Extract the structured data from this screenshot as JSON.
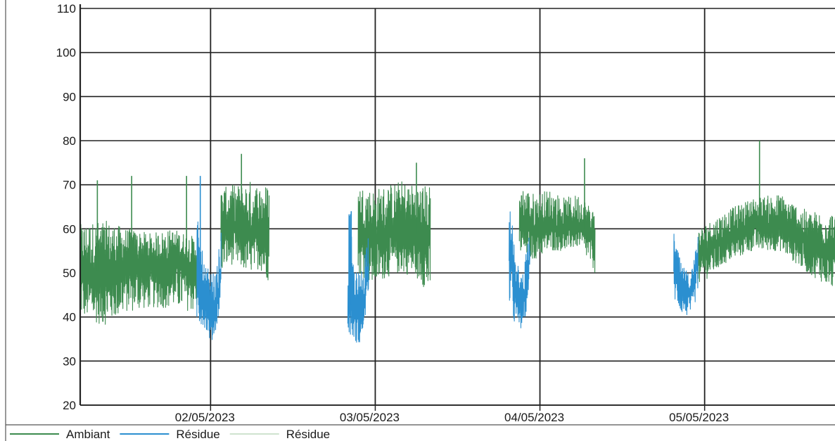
{
  "chart_data": {
    "type": "line",
    "title": "",
    "xlabel": "",
    "ylabel": "",
    "ylim": [
      20,
      110
    ],
    "yticks": [
      20,
      30,
      40,
      50,
      60,
      70,
      80,
      90,
      100,
      110
    ],
    "xlim": [
      "2023-05-01 05:00",
      "2023-05-05 19:00"
    ],
    "xticks": [
      {
        "label": "02/05/2023",
        "time": "2023-05-02 00:00"
      },
      {
        "label": "03/05/2023",
        "time": "2023-05-03 00:00"
      },
      {
        "label": "04/05/2023",
        "time": "2023-05-04 00:00"
      },
      {
        "label": "05/05/2023",
        "time": "2023-05-05 00:00"
      }
    ],
    "grid": true,
    "legend_position": "bottom",
    "series": [
      {
        "name": "Ambiant",
        "color": "#3d8b4f",
        "segments": [
          {
            "start": "2023-05-01 05:00",
            "end": "2023-05-01 22:00",
            "points": [
              [
                0,
                52,
                40,
                61
              ],
              [
                0.2,
                50,
                38,
                62
              ],
              [
                0.4,
                53,
                41,
                60
              ],
              [
                0.6,
                52,
                42,
                59
              ],
              [
                0.8,
                53,
                42,
                60
              ],
              [
                1,
                52,
                41,
                58
              ]
            ],
            "spikes": [
              [
                "2023-05-01 07:30",
                71
              ],
              [
                "2023-05-01 12:30",
                72
              ],
              [
                "2023-05-01 20:30",
                72
              ]
            ]
          },
          {
            "start": "2023-05-02 01:30",
            "end": "2023-05-02 08:30",
            "points": [
              [
                0,
                60,
                50,
                69
              ],
              [
                0.2,
                61,
                52,
                70
              ],
              [
                0.4,
                60,
                51,
                70
              ],
              [
                0.6,
                59,
                50,
                71
              ],
              [
                0.8,
                60,
                51,
                70
              ],
              [
                1,
                59,
                48,
                70
              ]
            ],
            "spikes": [
              [
                "2023-05-02 04:30",
                77
              ]
            ]
          },
          {
            "start": "2023-05-02 21:30",
            "end": "2023-05-03 08:00",
            "points": [
              [
                0,
                61,
                50,
                70
              ],
              [
                0.2,
                58,
                47,
                69
              ],
              [
                0.4,
                59,
                49,
                70
              ],
              [
                0.6,
                60,
                50,
                71
              ],
              [
                0.8,
                59,
                49,
                70
              ],
              [
                1,
                58,
                45,
                70
              ]
            ],
            "spikes": [
              [
                "2023-05-03 06:00",
                75
              ]
            ]
          },
          {
            "start": "2023-05-03 21:00",
            "end": "2023-05-04 08:00",
            "points": [
              [
                0,
                62,
                54,
                70
              ],
              [
                0.2,
                60,
                53,
                68
              ],
              [
                0.4,
                61,
                55,
                69
              ],
              [
                0.6,
                60,
                55,
                67
              ],
              [
                0.8,
                61,
                56,
                68
              ],
              [
                1,
                58,
                50,
                64
              ]
            ],
            "spikes": [
              [
                "2023-05-04 06:30",
                76
              ]
            ]
          },
          {
            "start": "2023-05-04 23:00",
            "end": "2023-05-05 19:00",
            "points": [
              [
                0,
                54,
                47,
                60
              ],
              [
                0.2,
                58,
                52,
                64
              ],
              [
                0.4,
                61,
                55,
                67
              ],
              [
                0.6,
                61,
                55,
                68
              ],
              [
                0.8,
                57,
                50,
                64
              ],
              [
                1,
                55,
                46,
                64
              ]
            ],
            "spikes": [
              [
                "2023-05-05 08:00",
                80
              ]
            ]
          }
        ]
      },
      {
        "name": "Résidue",
        "color": "#2b8fd0",
        "segments": [
          {
            "start": "2023-05-01 22:00",
            "end": "2023-05-02 01:30",
            "points": [
              [
                0,
                52,
                38,
                63
              ],
              [
                0.3,
                44,
                38,
                52
              ],
              [
                0.6,
                40,
                34,
                50
              ],
              [
                0.8,
                42,
                37,
                50
              ],
              [
                1,
                50,
                44,
                60
              ]
            ],
            "spikes": [
              [
                "2023-05-01 22:30",
                72
              ]
            ]
          },
          {
            "start": "2023-05-02 20:00",
            "end": "2023-05-02 23:00",
            "points": [
              [
                0,
                44,
                36,
                70
              ],
              [
                0.3,
                42,
                35,
                51
              ],
              [
                0.6,
                40,
                33,
                50
              ],
              [
                0.8,
                45,
                38,
                55
              ],
              [
                1,
                52,
                46,
                60
              ]
            ],
            "spikes": [
              [
                "2023-05-02 20:30",
                64
              ]
            ]
          },
          {
            "start": "2023-05-03 19:30",
            "end": "2023-05-03 22:30",
            "points": [
              [
                0,
                60,
                40,
                69
              ],
              [
                0.3,
                46,
                38,
                53
              ],
              [
                0.6,
                43,
                37,
                50
              ],
              [
                0.8,
                46,
                40,
                54
              ],
              [
                1,
                54,
                48,
                60
              ]
            ],
            "spikes": []
          },
          {
            "start": "2023-05-04 19:30",
            "end": "2023-05-04 23:00",
            "points": [
              [
                0,
                52,
                44,
                59
              ],
              [
                0.3,
                47,
                41,
                52
              ],
              [
                0.6,
                45,
                40,
                50
              ],
              [
                0.8,
                47,
                41,
                52
              ],
              [
                1,
                53,
                46,
                60
              ]
            ],
            "spikes": []
          }
        ]
      },
      {
        "name": "Résidue",
        "color": "#cfe3cf",
        "segments": []
      }
    ]
  }
}
